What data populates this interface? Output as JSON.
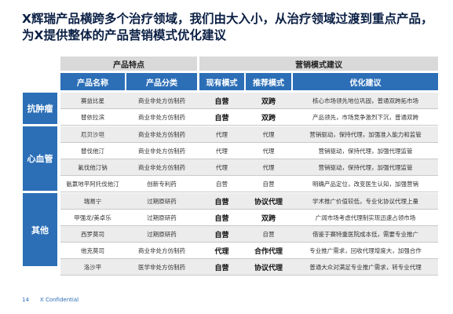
{
  "title": "X辉瑞产品横跨多个治疗领域，我们由大入小，从治疗领域过渡到重点产品，为X提供整体的产品营销模式优化建议",
  "table": {
    "group_headers": {
      "product": "产品特点",
      "marketing": "营销模式建议"
    },
    "columns": {
      "name": "产品名称",
      "category": "产品分类",
      "current": "现有模式",
      "recommended": "推荐模式",
      "advice": "优化建议"
    },
    "groups": [
      {
        "label": "抗肿瘤",
        "rows": [
          {
            "name": "赛益比星",
            "category": "商业非处方仿制药",
            "current": "自营",
            "recommended": "双跨",
            "advice": "核心市场领先地位巩固，普通双跨拓市场"
          },
          {
            "name": "替依拉滨",
            "category": "商业非处方仿制药",
            "current": "自营",
            "recommended": "双跨",
            "advice": "产品领先，市场竞争激烈下沉，普通双跨"
          }
        ]
      },
      {
        "label": "心血管",
        "rows": [
          {
            "name": "厄贝沙坦",
            "category": "商业非处方仿制药",
            "current": "代理",
            "recommended": "代理",
            "advice": "营销驱动，保持代理，加强准入能力和监管"
          },
          {
            "name": "替伐他汀",
            "category": "商业非处方仿制药",
            "current": "代理",
            "recommended": "代理",
            "advice": "营销驱动，保持代理，加强代理监管"
          },
          {
            "name": "氟伐他汀钠",
            "category": "商业非处方仿制药",
            "current": "代理",
            "recommended": "代理",
            "advice": "营销驱动，保持代理，加强代理监管"
          },
          {
            "name": "氨氯地平阿托伐他汀",
            "category": "创新专利药",
            "current": "自营",
            "recommended": "自营",
            "advice": "明确产品定位，改变医生认知，加强营销"
          }
        ]
      },
      {
        "label": "其他",
        "rows": [
          {
            "name": "瑞易宁",
            "category": "过期原研药",
            "current": "自营",
            "recommended": "协议代理",
            "advice": "学术推广价值较低，专业化协议代理上量"
          },
          {
            "name": "甲强龙/美卓乐",
            "category": "过期原研药",
            "current": "自营",
            "recommended": "双跨",
            "advice": "广阔市场考虑代理制实现迅速占领市场"
          },
          {
            "name": "西罗莫司",
            "category": "过期原研药",
            "current": "自营",
            "recommended": "自营",
            "advice": "借鉴于赛特重医院成本低，需要专业推广"
          },
          {
            "name": "他克莫司",
            "category": "商业非处方仿制药",
            "current": "代理",
            "recommended": "合作代理",
            "advice": "专业推广需求，回收代理增度大，加强合作"
          },
          {
            "name": "洛沙平",
            "category": "医学非处方仿制药",
            "current": "自营",
            "recommended": "协议代理",
            "advice": "普通大众对满足专业推广需求，转专业代理"
          }
        ]
      }
    ]
  },
  "footer": {
    "page": "14",
    "label": "X Confidential"
  }
}
